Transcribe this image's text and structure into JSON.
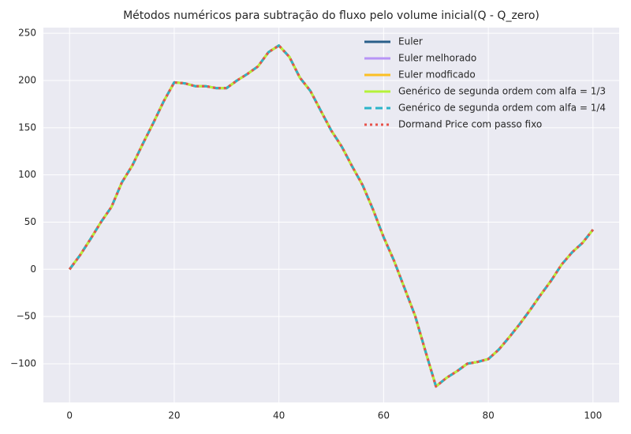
{
  "chart_data": {
    "type": "line",
    "title": "Métodos numéricos para subtração do fluxo pelo volume inicial(Q - Q_zero)",
    "x": [
      0,
      2,
      4,
      6,
      8,
      10,
      12,
      14,
      16,
      18,
      20,
      22,
      24,
      26,
      28,
      30,
      32,
      34,
      36,
      38,
      40,
      42,
      44,
      46,
      48,
      50,
      52,
      54,
      56,
      58,
      60,
      62,
      64,
      66,
      68,
      70,
      72,
      74,
      76,
      78,
      80,
      82,
      84,
      86,
      88,
      90,
      92,
      94,
      96,
      98,
      100
    ],
    "series": [
      {
        "name": "Euler",
        "color": "#2a5f8a",
        "linestyle": "solid",
        "values": [
          0,
          15,
          32,
          50,
          66,
          92,
          110,
          133,
          155,
          178,
          198,
          197,
          194,
          194,
          192,
          192,
          200,
          207,
          215,
          230,
          237,
          225,
          203,
          189,
          168,
          147,
          130,
          109,
          89,
          63,
          34,
          9,
          -20,
          -49,
          -87,
          -124,
          -115,
          -108,
          -100,
          -98,
          -95,
          -85,
          -72,
          -58,
          -43,
          -27,
          -12,
          5,
          18,
          28,
          42
        ]
      },
      {
        "name": "Euler melhorado",
        "color": "#b794f6",
        "linestyle": "solid",
        "values": [
          0,
          15,
          32,
          50,
          66,
          92,
          110,
          133,
          155,
          178,
          198,
          197,
          194,
          194,
          192,
          192,
          200,
          207,
          215,
          230,
          237,
          225,
          203,
          189,
          168,
          147,
          130,
          109,
          89,
          63,
          34,
          9,
          -20,
          -49,
          -87,
          -124,
          -115,
          -108,
          -100,
          -98,
          -95,
          -85,
          -72,
          -58,
          -43,
          -27,
          -12,
          5,
          18,
          28,
          42
        ]
      },
      {
        "name": "Euler modficado",
        "color": "#fbbf24",
        "linestyle": "solid",
        "values": [
          0,
          15,
          32,
          50,
          66,
          92,
          110,
          133,
          155,
          178,
          198,
          197,
          194,
          194,
          192,
          192,
          200,
          207,
          215,
          230,
          237,
          225,
          203,
          189,
          168,
          147,
          130,
          109,
          89,
          63,
          34,
          9,
          -20,
          -49,
          -87,
          -124,
          -115,
          -108,
          -100,
          -98,
          -95,
          -85,
          -72,
          -58,
          -43,
          -27,
          -12,
          5,
          18,
          28,
          42
        ]
      },
      {
        "name": "Genérico de segunda ordem com alfa = 1/3",
        "color": "#b5f23a",
        "linestyle": "solid",
        "values": [
          0,
          15,
          32,
          50,
          66,
          92,
          110,
          133,
          155,
          178,
          198,
          197,
          194,
          194,
          192,
          192,
          200,
          207,
          215,
          230,
          237,
          225,
          203,
          189,
          168,
          147,
          130,
          109,
          89,
          63,
          34,
          9,
          -20,
          -49,
          -87,
          -124,
          -115,
          -108,
          -100,
          -98,
          -95,
          -85,
          -72,
          -58,
          -43,
          -27,
          -12,
          5,
          18,
          28,
          42
        ]
      },
      {
        "name": "Genérico de segunda ordem com alfa = 1/4",
        "color": "#2bb4c9",
        "linestyle": "dashed",
        "values": [
          0,
          15,
          32,
          50,
          66,
          92,
          110,
          133,
          155,
          178,
          198,
          197,
          194,
          194,
          192,
          192,
          200,
          207,
          215,
          230,
          237,
          225,
          203,
          189,
          168,
          147,
          130,
          109,
          89,
          63,
          34,
          9,
          -20,
          -49,
          -87,
          -124,
          -115,
          -108,
          -100,
          -98,
          -95,
          -85,
          -72,
          -58,
          -43,
          -27,
          -12,
          5,
          18,
          28,
          42
        ]
      },
      {
        "name": "Dormand Price com passo fixo",
        "color": "#e8534a",
        "linestyle": "dotted",
        "values": [
          0,
          15,
          32,
          50,
          66,
          92,
          110,
          133,
          155,
          178,
          198,
          197,
          194,
          194,
          192,
          192,
          200,
          207,
          215,
          230,
          237,
          225,
          203,
          189,
          168,
          147,
          130,
          109,
          89,
          63,
          34,
          9,
          -20,
          -49,
          -87,
          -124,
          -115,
          -108,
          -100,
          -98,
          -95,
          -85,
          -72,
          -58,
          -43,
          -27,
          -12,
          5,
          18,
          28,
          42
        ]
      }
    ],
    "xlim": [
      -5,
      105
    ],
    "ylim": [
      -141,
      256
    ],
    "xticks": [
      0,
      20,
      40,
      60,
      80,
      100
    ],
    "yticks": [
      {
        "value": -100,
        "label": "−100"
      },
      {
        "value": -50,
        "label": "−50"
      },
      0,
      50,
      100,
      150,
      200,
      250
    ],
    "grid": true,
    "legend": "upper right"
  }
}
